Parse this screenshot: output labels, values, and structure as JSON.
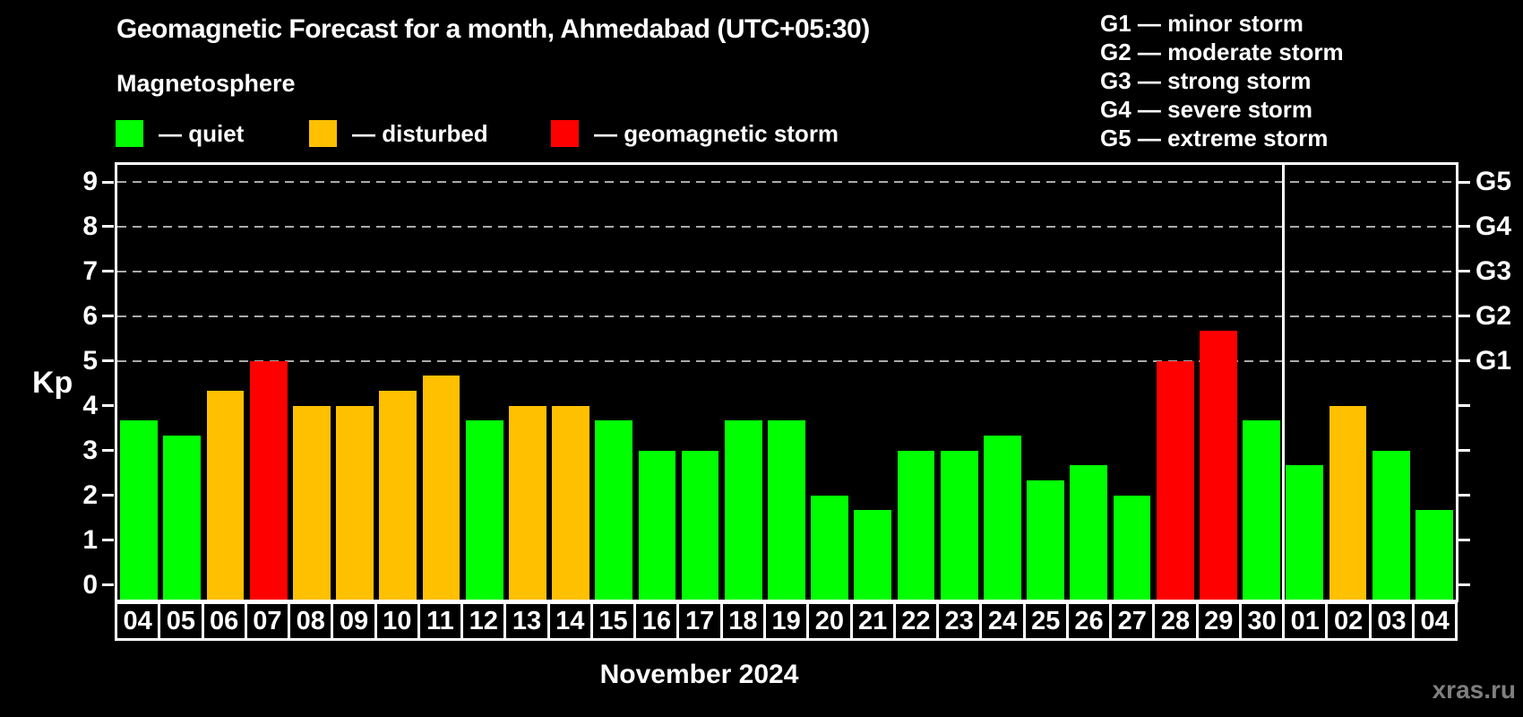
{
  "title": "Geomagnetic Forecast for a month, Ahmedabad (UTC+05:30)",
  "subtitle": "Magnetosphere",
  "legend": {
    "items": [
      {
        "key": "quiet",
        "label": "— quiet",
        "color": "#00ff00"
      },
      {
        "key": "disturbed",
        "label": "— disturbed",
        "color": "#ffc000"
      },
      {
        "key": "storm",
        "label": "— geomagnetic storm",
        "color": "#ff0000"
      }
    ]
  },
  "storm_scale": {
    "lines": [
      "G1 — minor storm",
      "G2 — moderate storm",
      "G3 — strong storm",
      "G4 — severe storm",
      "G5 — extreme storm"
    ]
  },
  "axes": {
    "y_left_label": "Kp",
    "y_left_ticks": [
      "0",
      "1",
      "2",
      "3",
      "4",
      "5",
      "6",
      "7",
      "8",
      "9"
    ],
    "y_right_labels": [
      {
        "kp": 5,
        "label": "G1"
      },
      {
        "kp": 6,
        "label": "G2"
      },
      {
        "kp": 7,
        "label": "G3"
      },
      {
        "kp": 8,
        "label": "G4"
      },
      {
        "kp": 9,
        "label": "G5"
      }
    ]
  },
  "chart_data": {
    "type": "bar",
    "title": "Geomagnetic Forecast for a month, Ahmedabad (UTC+05:30)",
    "xlabel": "November 2024",
    "ylabel": "Kp",
    "ylim": [
      0,
      9
    ],
    "gridlines_at": [
      5,
      6,
      7,
      8,
      9
    ],
    "legend_position": "top",
    "categories": [
      "04",
      "05",
      "06",
      "07",
      "08",
      "09",
      "10",
      "11",
      "12",
      "13",
      "14",
      "15",
      "16",
      "17",
      "18",
      "19",
      "20",
      "21",
      "22",
      "23",
      "24",
      "25",
      "26",
      "27",
      "28",
      "29",
      "30",
      "01",
      "02",
      "03",
      "04"
    ],
    "values": [
      3.67,
      3.33,
      4.33,
      5.0,
      4.0,
      4.0,
      4.33,
      4.67,
      3.67,
      4.0,
      4.0,
      3.67,
      3.0,
      3.0,
      3.67,
      3.67,
      2.0,
      1.67,
      3.0,
      3.0,
      3.33,
      2.33,
      2.67,
      2.0,
      5.0,
      5.67,
      3.67,
      2.67,
      4.0,
      3.0,
      1.67
    ],
    "statuses": [
      "quiet",
      "quiet",
      "disturbed",
      "storm",
      "disturbed",
      "disturbed",
      "disturbed",
      "disturbed",
      "quiet",
      "disturbed",
      "disturbed",
      "quiet",
      "quiet",
      "quiet",
      "quiet",
      "quiet",
      "quiet",
      "quiet",
      "quiet",
      "quiet",
      "quiet",
      "quiet",
      "quiet",
      "quiet",
      "storm",
      "storm",
      "quiet",
      "quiet",
      "disturbed",
      "quiet",
      "quiet"
    ],
    "colors": {
      "quiet": "#00ff00",
      "disturbed": "#ffc000",
      "storm": "#ff0000"
    },
    "month_split_index": 27
  },
  "footer": {
    "month_label": "November 2024",
    "watermark": "xras.ru"
  }
}
